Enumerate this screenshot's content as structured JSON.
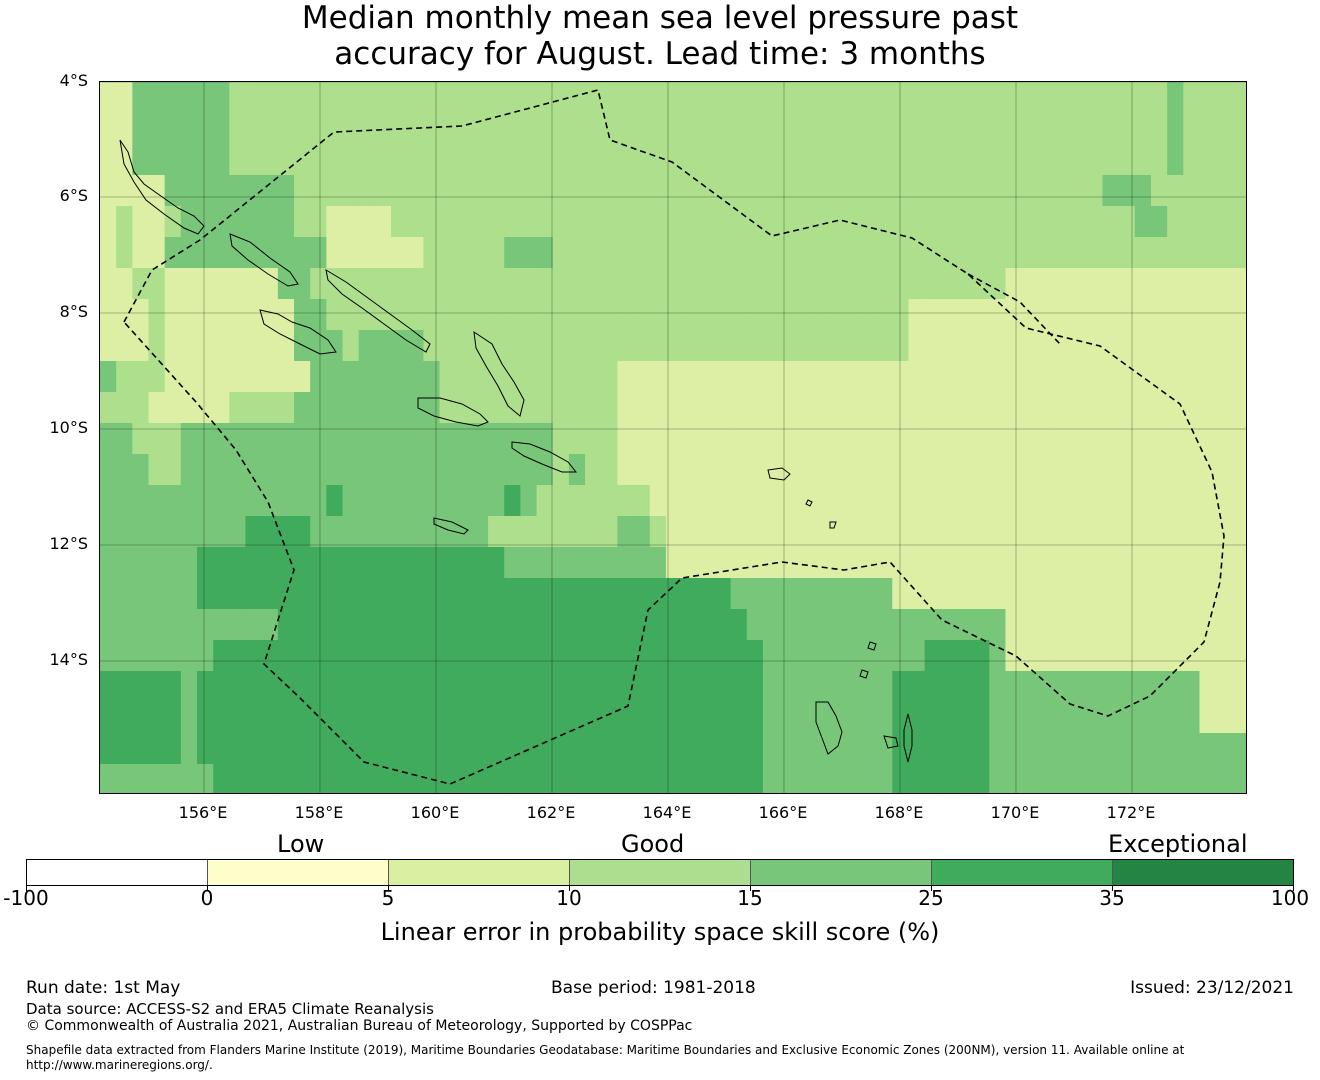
{
  "title_lines": [
    "Median monthly mean sea level pressure past",
    "accuracy for August. Lead time: 3 months"
  ],
  "map": {
    "lat_labels": [
      "4°S",
      "6°S",
      "8°S",
      "10°S",
      "12°S",
      "14°S"
    ],
    "lon_labels": [
      "156°E",
      "158°E",
      "160°E",
      "162°E",
      "164°E",
      "166°E",
      "168°E",
      "170°E",
      "172°E"
    ],
    "grid_rows": [
      "22444444333333333333333333333333333333333333333333333333333333333343333",
      "22444444333333333333333333333333333333333333333333333333333333333343333",
      "22444444333333333333333333333333333333333333333333333333333333333343333",
      "22224444444433333333333333333333333333333333333333333333333333444333333",
      "23223444444433222233333333333333333333333333333333333333333333334433333",
      "23224444444444222222333334443333333333333333333333333333333333333333333",
      "22332222222443333333333333333333333333333333333333333333222222222222222",
      "22232222222244333333333333333333333333333333333333222222222222222222222",
      "22232222222244434444333333333333333333333333333333222222222222222222222",
      "43332222222224444444433333333333222222222222222222222222222222222222222",
      "33322222333344444444433333333333222222222222222222222222222222222222222",
      "44333444444444444444444444443333222222222222222222222222222222222222222",
      "44433444444444444444444444443433222222222222222222222222222222222222222",
      "44444444444444544444444445433333332222222222222222222222222222222222222",
      "44444444455554444444444433333333443222222222222222222222222222222222222",
      "44444455555555555555555554444444444222222222222222222222222222222222222",
      "44444455555555555555555555555555555555544444444442222222222222222222222",
      "44444444444555555555555555555555555555554444444444444444222222222222222",
      "44444445555555555555555555555555555555555444444444455554222222222222222",
      "55555455555555555555555555555555555555555444444445555554444444444444222",
      "55555455555555555555555555555555555555555444444445555554444444444444222",
      "55555455555555555555555555555555555555555444444445555554444444444444444",
      "44444445555555555555555555555555555555555444444445555554444444444444444"
    ],
    "palette": {
      "1": "#fdfdc9",
      "2": "#dcefa4",
      "3": "#addf8c",
      "4": "#78c679",
      "5": "#41ab5d",
      "6": "#238443"
    }
  },
  "colorbar": {
    "category_labels": [
      "Low",
      "Good",
      "Exceptional"
    ],
    "colors": [
      "#ffffff",
      "#ffffcc",
      "#d9f0a3",
      "#addd8e",
      "#78c679",
      "#41ab5d",
      "#238443"
    ],
    "tick_labels": [
      "-100",
      "0",
      "5",
      "10",
      "15",
      "25",
      "35",
      "100"
    ],
    "label": "Linear error in probability space skill score (%)"
  },
  "footer": {
    "run_date": "Run date: 1st May",
    "base_period": "Base period: 1981-2018",
    "issued": "Issued: 23/12/2021",
    "data_source": "Data source: ACCESS-S2 and ERA5 Climate Reanalysis",
    "copyright": "© Commonwealth of Australia 2021, Australian Bureau of Meteorology, Supported by COSPPac",
    "shapefile_line1": "Shapefile data extracted from Flanders Marine Institute (2019), Maritime Boundaries Geodatabase: Maritime Boundaries and Exclusive Economic Zones (200NM), version 11. Available online at",
    "shapefile_line2": "http://www.marineregions.org/."
  }
}
